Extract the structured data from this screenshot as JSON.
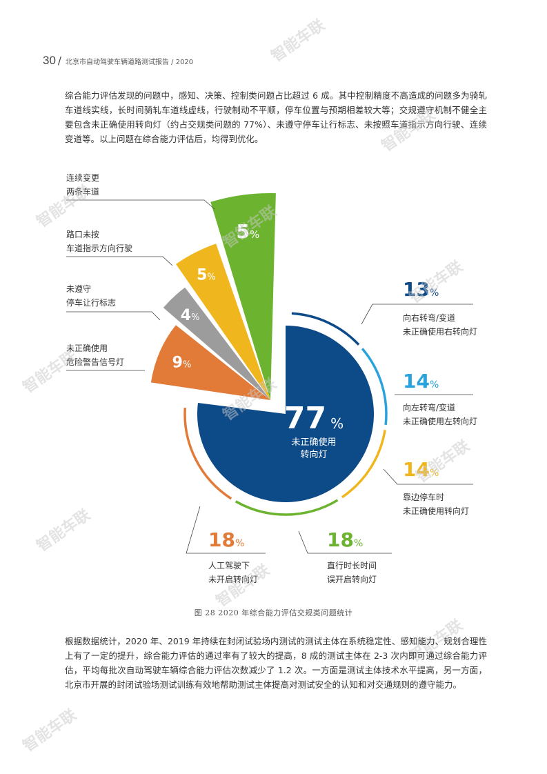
{
  "header": {
    "page_number": "30",
    "separator": "/",
    "report_title": "北京市自动驾驶车辆道路测试报告 / 2020"
  },
  "paragraph1": "综合能力评估发现的问题中，感知、决策、控制类问题占比超过 6 成。其中控制精度不高造成的问题多为骑轧车道线实线，长时间骑轧车道线虚线，行驶制动不平顺，停车位置与预期相差较大等；交规遵守机制不健全主要包含未正确使用转向灯（约占交规类问题的 77%）、未遵守停车让行标志、未按照车道指示方向行驶、连续变道等。以上问题在综合能力评估后，均得到优化。",
  "figure_caption": "图 28  2020 年综合能力评估交规类问题统计",
  "paragraph2": "根据数据统计，2020 年、2019 年持续在封闭试验场内测试的测试主体在系统稳定性、感知能力、规划合理性上有了一定的提升，综合能力评估的通过率有了较大的提高，8 成的测试主体在 2-3 次内即可通过综合能力评估，平均每批次自动驾驶车辆综合能力评估次数减少了 1.2 次。一方面是测试主体技术水平提高，另一方面，北京市开展的封闭试验场测试训练有效地帮助测试主体提高对测试安全的认知和对交通规则的遵守能力。",
  "watermark_text": "智能车联",
  "chart_data": {
    "type": "pie",
    "main_slice": {
      "value": 77,
      "unit": "%",
      "label_line1": "未正确使用",
      "label_line2": "转向灯",
      "color": "#0d4a88"
    },
    "outer_slices": [
      {
        "value": 9,
        "unit": "%",
        "label_line1": "未正确使用",
        "label_line2": "危险警告信号灯",
        "color": "#e27a38"
      },
      {
        "value": 4,
        "unit": "%",
        "label_line1": "未遵守",
        "label_line2": "停车让行标志",
        "color": "#9c9c9c"
      },
      {
        "value": 5,
        "unit": "%",
        "label_line1": "路口未按",
        "label_line2": "车道指示方向行驶",
        "color": "#f0b61e"
      },
      {
        "value": 5,
        "unit": "%",
        "label_line1": "连续变更",
        "label_line2": "两条车道",
        "color": "#6cb32f"
      }
    ],
    "breakdown": [
      {
        "value": 13,
        "unit": "%",
        "label_line1": "向右转弯/变道",
        "label_line2": "未正确使用右转向灯",
        "color": "#0d4a88"
      },
      {
        "value": 14,
        "unit": "%",
        "label_line1": "向左转弯/变道",
        "label_line2": "未正确使用左转向灯",
        "color": "#29a3dc"
      },
      {
        "value": 14,
        "unit": "%",
        "label_line1": "靠边停车时",
        "label_line2": "未正确使用转向灯",
        "color": "#f0b61e"
      },
      {
        "value": 18,
        "unit": "%",
        "label_line1": "直行时长时间",
        "label_line2": "误开启转向灯",
        "color": "#6cb32f"
      },
      {
        "value": 18,
        "unit": "%",
        "label_line1": "人工驾驶下",
        "label_line2": "未开启转向灯",
        "color": "#e27a38"
      }
    ]
  }
}
